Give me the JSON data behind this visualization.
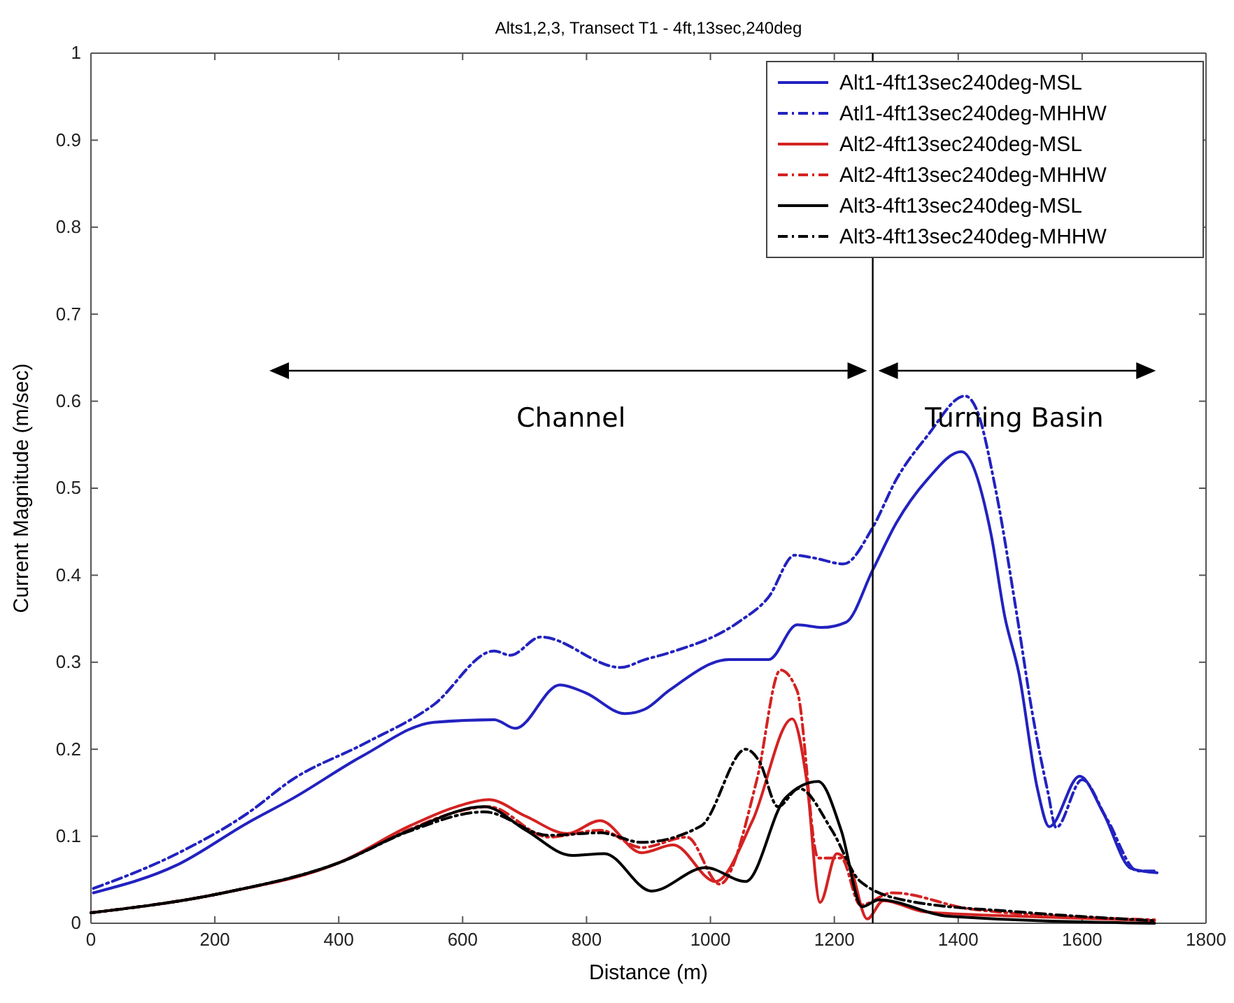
{
  "chart_data": {
    "type": "line",
    "title": "Alts1,2,3, Transect T1 - 4ft,13sec,240deg",
    "xlabel": "Distance (m)",
    "ylabel": "Current Magnitude (m/sec)",
    "xlim": [
      0,
      1800
    ],
    "xticks": [
      0,
      200,
      400,
      600,
      800,
      1000,
      1200,
      1400,
      1600,
      1800
    ],
    "ylim": [
      0,
      1
    ],
    "yticks": [
      0,
      0.1,
      0.2,
      0.3,
      0.4,
      0.5,
      0.6,
      0.7,
      0.8,
      0.9,
      1
    ],
    "grid": false,
    "legend": "top right",
    "marker": "none",
    "annotations": [
      "Channel",
      "Turning Basin"
    ],
    "ref_lines": [
      {
        "axis": "x",
        "value": 1262,
        "label": null,
        "color": "#000000"
      }
    ],
    "series": [
      {
        "name": "Alt1-4ft13sec240deg-MSL",
        "color": "#2222c0",
        "line_style": "solid",
        "x": [
          4,
          139,
          252,
          327,
          440,
          553,
          651,
          685,
          757,
          798,
          862,
          894,
          934,
          1030,
          1094,
          1140,
          1181,
          1219,
          1262,
          1300,
          1350,
          1405,
          1453,
          1475,
          1498,
          1528,
          1547,
          1596,
          1634,
          1679,
          1721
        ],
        "values": [
          0.035,
          0.067,
          0.115,
          0.144,
          0.193,
          0.231,
          0.234,
          0.224,
          0.274,
          0.265,
          0.241,
          0.246,
          0.268,
          0.303,
          0.303,
          0.343,
          0.34,
          0.346,
          0.406,
          0.46,
          0.51,
          0.542,
          0.447,
          0.353,
          0.287,
          0.154,
          0.111,
          0.169,
          0.127,
          0.063,
          0.058
        ]
      },
      {
        "name": "Atl1-4ft13sec240deg-MHHW",
        "color": "#2222c0",
        "line_style": "dashed",
        "x": [
          4,
          139,
          252,
          327,
          440,
          553,
          651,
          677,
          726,
          855,
          894,
          934,
          1045,
          1094,
          1136,
          1166,
          1215,
          1262,
          1300,
          1350,
          1411,
          1430,
          1460,
          1495,
          1520,
          1545,
          1558,
          1600,
          1640,
          1690,
          1721
        ],
        "values": [
          0.04,
          0.08,
          0.126,
          0.166,
          0.206,
          0.251,
          0.313,
          0.308,
          0.329,
          0.294,
          0.303,
          0.311,
          0.346,
          0.375,
          0.423,
          0.42,
          0.413,
          0.455,
          0.51,
          0.56,
          0.606,
          0.59,
          0.5,
          0.353,
          0.24,
          0.15,
          0.11,
          0.165,
          0.12,
          0.06,
          0.06
        ]
      },
      {
        "name": "Alt2-4ft13sec240deg-MSL",
        "color": "#d42222",
        "line_style": "solid",
        "x": [
          0,
          214,
          402,
          515,
          590,
          642,
          702,
          769,
          822,
          889,
          940,
          1008,
          1068,
          1132,
          1155,
          1177,
          1204,
          1226,
          1253,
          1279,
          1347,
          1498,
          1717
        ],
        "values": [
          0.012,
          0.035,
          0.07,
          0.112,
          0.134,
          0.142,
          0.123,
          0.103,
          0.118,
          0.081,
          0.09,
          0.048,
          0.118,
          0.235,
          0.166,
          0.024,
          0.08,
          0.064,
          0.005,
          0.026,
          0.013,
          0.008,
          0.003
        ]
      },
      {
        "name": "Alt2-4ft13sec240deg-MHHW",
        "color": "#d42222",
        "line_style": "dashed",
        "x": [
          0,
          214,
          402,
          515,
          590,
          642,
          739,
          822,
          889,
          962,
          1015,
          1075,
          1113,
          1140,
          1174,
          1211,
          1242,
          1294,
          1423,
          1717
        ],
        "values": [
          0.012,
          0.035,
          0.07,
          0.108,
          0.128,
          0.134,
          0.099,
          0.107,
          0.087,
          0.099,
          0.045,
          0.165,
          0.291,
          0.267,
          0.075,
          0.075,
          0.021,
          0.035,
          0.016,
          0.004
        ]
      },
      {
        "name": "Alt3-4ft13sec240deg-MSL",
        "color": "#000000",
        "line_style": "solid",
        "x": [
          0,
          214,
          402,
          515,
          635,
          702,
          776,
          829,
          905,
          992,
          1057,
          1121,
          1174,
          1211,
          1245,
          1272,
          1385,
          1717
        ],
        "values": [
          0.012,
          0.035,
          0.07,
          0.107,
          0.134,
          0.107,
          0.078,
          0.08,
          0.037,
          0.064,
          0.048,
          0.144,
          0.163,
          0.107,
          0.019,
          0.027,
          0.008,
          0
        ]
      },
      {
        "name": "Alt3-4ft13sec240deg-MHHW",
        "color": "#000000",
        "line_style": "dashed",
        "x": [
          0,
          214,
          402,
          515,
          635,
          739,
          822,
          889,
          985,
          1057,
          1079,
          1109,
          1143,
          1196,
          1242,
          1317,
          1498,
          1717
        ],
        "values": [
          0.012,
          0.035,
          0.07,
          0.106,
          0.128,
          0.101,
          0.104,
          0.093,
          0.112,
          0.2,
          0.186,
          0.134,
          0.155,
          0.107,
          0.048,
          0.026,
          0.013,
          0.003
        ]
      }
    ]
  }
}
